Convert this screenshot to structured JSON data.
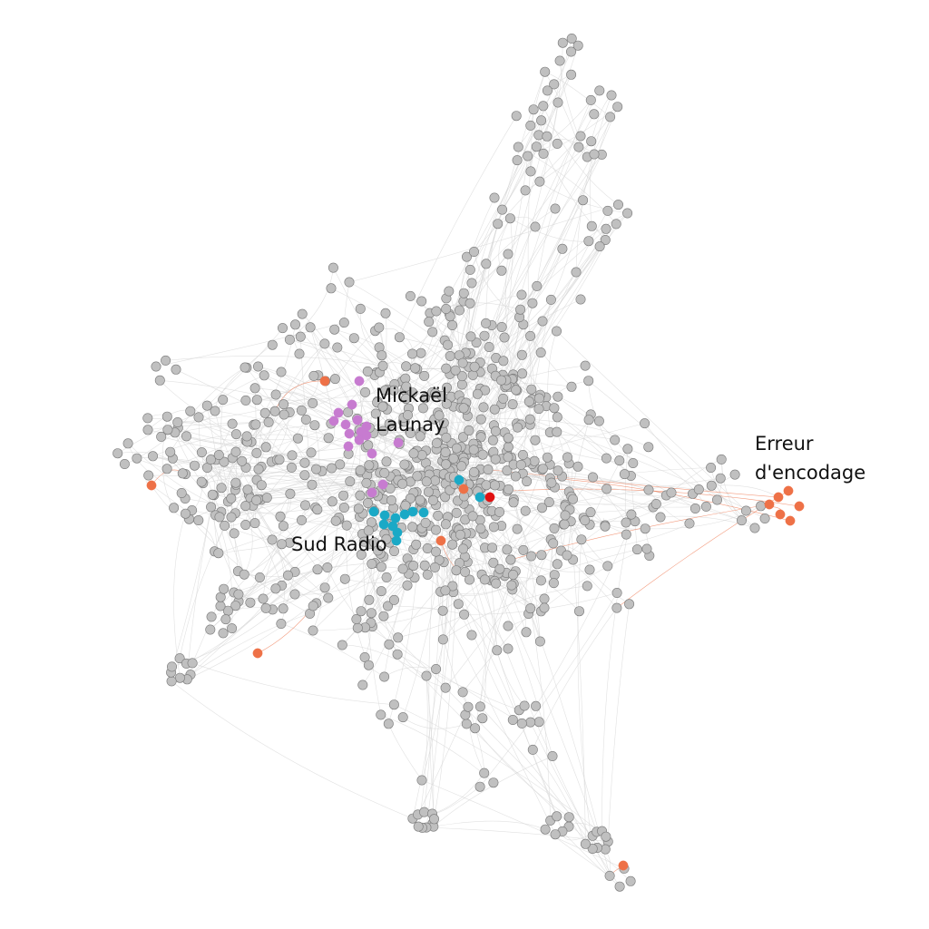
{
  "labels": {
    "mickael_launay": [
      "Mickaël",
      "Launay"
    ],
    "erreur_encodage": [
      "Erreur",
      "d'encodage"
    ],
    "sud_radio": "Sud Radio"
  },
  "colors": {
    "default_node": "#c0c0c0",
    "node_stroke": "#7a7a7a",
    "edge": "#d4d4d4",
    "mickael_launay": "#c77bd0",
    "sud_radio": "#1aa9c6",
    "erreur_encodage": "#ee7147",
    "highlight": "#e01010"
  }
}
